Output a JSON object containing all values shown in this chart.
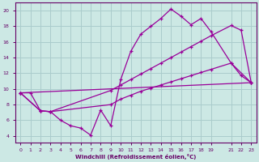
{
  "xlabel": "Windchill (Refroidissement éolien,°C)",
  "bg_color": "#cce8e4",
  "line_color": "#990099",
  "grid_color": "#aacccc",
  "axis_color": "#660066",
  "text_color": "#660066",
  "xlim": [
    -0.5,
    23.5
  ],
  "ylim": [
    3.2,
    21.0
  ],
  "xticks": [
    0,
    1,
    2,
    3,
    4,
    5,
    6,
    7,
    8,
    9,
    10,
    11,
    12,
    13,
    14,
    15,
    16,
    17,
    18,
    19,
    21,
    22,
    23
  ],
  "yticks": [
    4,
    6,
    8,
    10,
    12,
    14,
    16,
    18,
    20
  ],
  "line1_x": [
    0,
    1,
    2,
    3,
    4,
    5,
    6,
    7,
    8,
    9,
    10,
    11,
    12,
    13,
    14,
    15,
    16,
    17,
    18,
    19,
    21,
    22,
    23
  ],
  "line1_y": [
    9.5,
    9.5,
    7.2,
    7.1,
    6.0,
    5.3,
    5.0,
    4.1,
    7.3,
    5.3,
    11.2,
    14.8,
    17.0,
    18.0,
    19.0,
    20.2,
    19.3,
    18.2,
    19.0,
    17.3,
    13.3,
    11.7,
    10.8
  ],
  "line2_x": [
    0,
    2,
    3,
    9,
    10,
    11,
    12,
    13,
    14,
    15,
    16,
    17,
    18,
    19,
    21,
    22,
    23
  ],
  "line2_y": [
    9.5,
    7.2,
    7.1,
    9.8,
    10.5,
    11.2,
    11.9,
    12.6,
    13.3,
    14.0,
    14.7,
    15.4,
    16.1,
    16.8,
    18.1,
    17.5,
    10.8
  ],
  "line3_x": [
    0,
    2,
    3,
    9,
    10,
    11,
    12,
    13,
    14,
    15,
    16,
    17,
    18,
    19,
    21,
    23
  ],
  "line3_y": [
    9.5,
    7.2,
    7.1,
    8.0,
    8.7,
    9.2,
    9.7,
    10.1,
    10.5,
    10.9,
    11.3,
    11.7,
    12.1,
    12.5,
    13.3,
    10.8
  ],
  "line4_x": [
    0,
    23
  ],
  "line4_y": [
    9.5,
    10.8
  ]
}
